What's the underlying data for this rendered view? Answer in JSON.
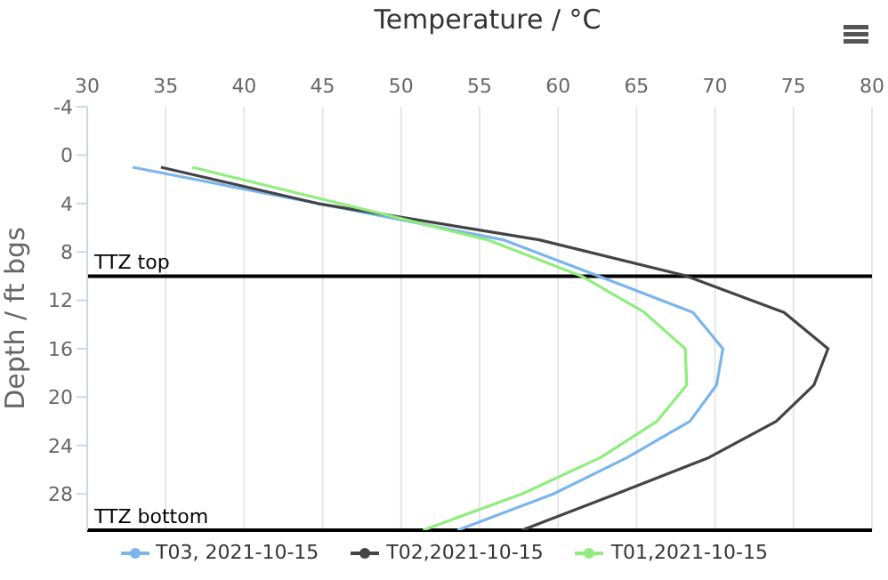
{
  "chart_data": {
    "type": "line",
    "xlabel": "Temperature / °C",
    "ylabel": "Depth / ft bgs",
    "xlim": [
      30,
      80
    ],
    "xticks": [
      30,
      35,
      40,
      45,
      50,
      55,
      60,
      65,
      70,
      75,
      80
    ],
    "ylim": [
      31,
      -4
    ],
    "yticks": [
      -4,
      0,
      4,
      8,
      12,
      16,
      20,
      24,
      28
    ],
    "grid": "x",
    "legend": "bottom",
    "marker": "none",
    "line_style": "solid",
    "series": [
      {
        "name": "T03, 2021-10-15",
        "color": "#7cb5ec",
        "x": [
          32.9,
          44.7,
          56.5,
          62.6,
          68.6,
          70.5,
          70.1,
          68.4,
          64.4,
          59.7,
          53.6
        ],
        "values": [
          1,
          4,
          7,
          10,
          13,
          16,
          19,
          22,
          25,
          28,
          31
        ]
      },
      {
        "name": "T02,2021-10-15",
        "color": "#434348",
        "x": [
          34.7,
          44.7,
          58.8,
          68.2,
          74.4,
          77.2,
          76.3,
          73.9,
          69.6,
          63.7,
          57.7
        ],
        "values": [
          1,
          4,
          7,
          10,
          13,
          16,
          19,
          22,
          25,
          28,
          31
        ]
      },
      {
        "name": "T01,2021-10-15",
        "color": "#90ed7d",
        "x": [
          36.7,
          46.1,
          55.5,
          61.5,
          65.5,
          68.1,
          68.2,
          66.3,
          62.7,
          57.7,
          51.4
        ],
        "values": [
          1,
          4,
          7,
          10,
          13,
          16,
          19,
          22,
          25,
          28,
          31
        ]
      }
    ],
    "ref_lines": [
      {
        "axis": "y",
        "value": 10,
        "label": "TTZ top",
        "color": "#000000"
      },
      {
        "axis": "y",
        "value": 31,
        "label": "TTZ bottom",
        "color": "#000000"
      }
    ]
  }
}
